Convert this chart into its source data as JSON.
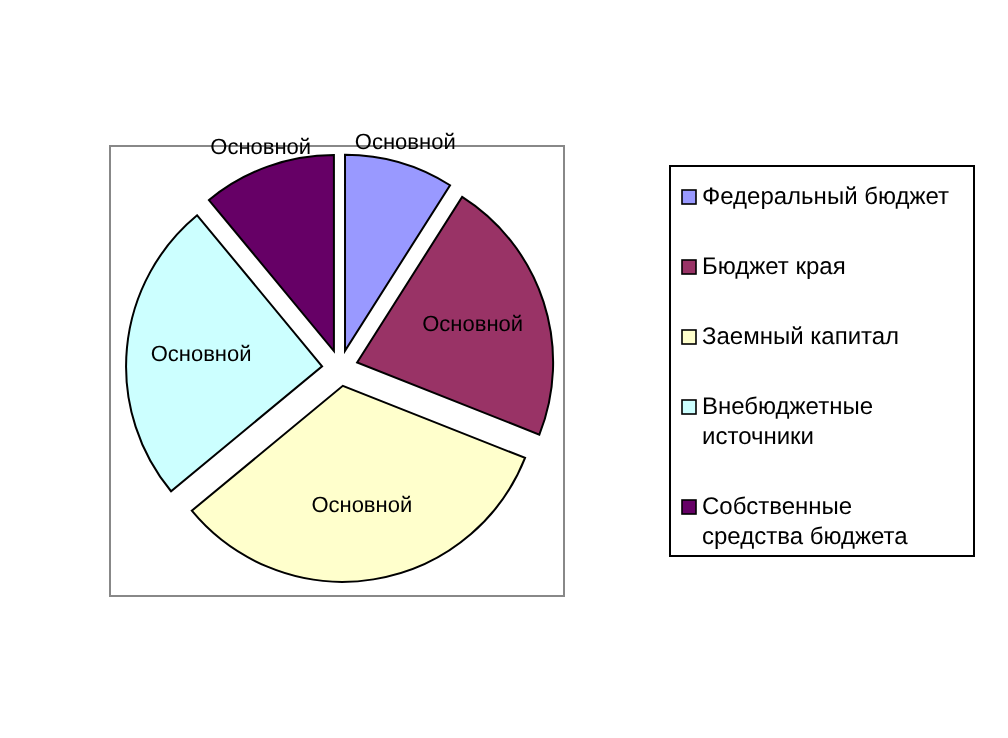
{
  "chart_data": {
    "type": "pie",
    "categories": [
      "Федеральный бюджет",
      "Бюджет края",
      "Заемный капитал",
      "Внебюджетные источники",
      "Собственные средства бюджета"
    ],
    "values": [
      9,
      22,
      33,
      25,
      11
    ],
    "colors": [
      "#9999ff",
      "#993366",
      "#ffffcc",
      "#ccffff",
      "#660066"
    ],
    "value_labels": [
      "Основной",
      "Основной",
      "Основной",
      "Основной",
      "Основной"
    ],
    "legend": "right"
  }
}
